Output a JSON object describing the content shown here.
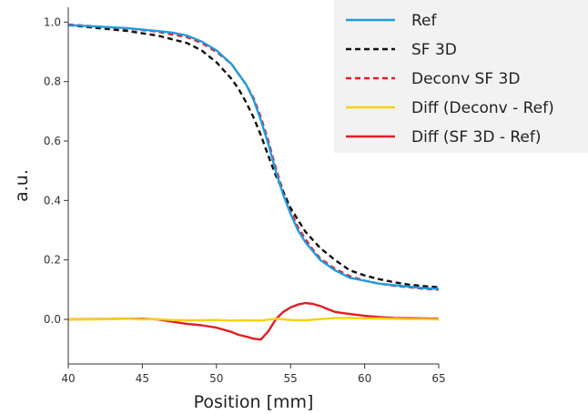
{
  "chart_data": {
    "type": "line",
    "xlabel": "Position [mm]",
    "ylabel": "a.u.",
    "xlim": [
      40,
      65
    ],
    "ylim": [
      -0.15,
      1.05
    ],
    "xticks": [
      40,
      45,
      50,
      55,
      60,
      65
    ],
    "yticks": [
      0.0,
      0.2,
      0.4,
      0.6,
      0.8,
      1.0
    ],
    "xtick_labels": [
      "40",
      "45",
      "50",
      "55",
      "60",
      "65"
    ],
    "ytick_labels": [
      "0.0",
      "0.2",
      "0.4",
      "0.6",
      "0.8",
      "1.0"
    ],
    "grid": false,
    "legend_position": "top-right",
    "series": [
      {
        "name": "Ref",
        "color": "#1f9bde",
        "dash": "solid",
        "x": [
          40,
          42,
          44,
          46,
          47,
          48,
          49,
          50,
          51,
          52,
          52.5,
          53,
          53.5,
          54,
          54.5,
          55,
          55.5,
          56,
          56.5,
          57,
          58,
          59,
          60,
          61,
          62,
          63,
          64,
          65
        ],
        "y": [
          0.99,
          0.985,
          0.98,
          0.97,
          0.965,
          0.955,
          0.935,
          0.905,
          0.86,
          0.79,
          0.74,
          0.67,
          0.59,
          0.5,
          0.42,
          0.355,
          0.3,
          0.26,
          0.23,
          0.2,
          0.165,
          0.14,
          0.13,
          0.12,
          0.115,
          0.11,
          0.105,
          0.103
        ]
      },
      {
        "name": "SF 3D",
        "color": "#111111",
        "dash": "dashed",
        "x": [
          40,
          42,
          44,
          46,
          48,
          49,
          50,
          51,
          51.5,
          52,
          52.5,
          53,
          53.5,
          54,
          54.5,
          55,
          55.5,
          56,
          57,
          58,
          59,
          60,
          61,
          62,
          63,
          64,
          65
        ],
        "y": [
          0.99,
          0.98,
          0.97,
          0.955,
          0.93,
          0.905,
          0.865,
          0.81,
          0.775,
          0.73,
          0.68,
          0.62,
          0.55,
          0.485,
          0.43,
          0.375,
          0.335,
          0.295,
          0.24,
          0.2,
          0.165,
          0.148,
          0.135,
          0.125,
          0.117,
          0.112,
          0.108
        ]
      },
      {
        "name": "Deconv SF 3D",
        "color": "#e01e26",
        "dash": "dashed",
        "x": [
          40,
          42,
          44,
          46,
          48,
          49,
          50,
          51,
          52,
          52.5,
          53,
          53.5,
          54,
          54.5,
          55,
          55.5,
          56,
          56.5,
          57,
          58,
          59,
          60,
          61,
          62,
          63,
          64,
          65
        ],
        "y": [
          0.992,
          0.985,
          0.978,
          0.968,
          0.95,
          0.93,
          0.9,
          0.86,
          0.79,
          0.745,
          0.68,
          0.6,
          0.51,
          0.43,
          0.365,
          0.31,
          0.27,
          0.235,
          0.205,
          0.17,
          0.145,
          0.13,
          0.12,
          0.113,
          0.108,
          0.103,
          0.1
        ]
      },
      {
        "name": "Diff (Deconv - Ref)",
        "color": "#f5d30a",
        "dash": "solid",
        "x": [
          40,
          42,
          44,
          45,
          46,
          47,
          48,
          49,
          50,
          51,
          52,
          53,
          54,
          55,
          56,
          57,
          58,
          59,
          60,
          61,
          62,
          63,
          64,
          65
        ],
        "y": [
          0.0,
          0.0,
          0.002,
          0.0,
          0.001,
          -0.002,
          -0.003,
          -0.003,
          -0.002,
          -0.004,
          -0.003,
          -0.004,
          0.002,
          -0.002,
          -0.003,
          0.001,
          0.004,
          0.005,
          0.003,
          0.003,
          0.002,
          0.001,
          0.001,
          0.0
        ]
      },
      {
        "name": "Diff (SF 3D - Ref)",
        "color": "#e01e26",
        "dash": "solid",
        "x": [
          40,
          42,
          44,
          45,
          46,
          47,
          48,
          49,
          50,
          51,
          51.5,
          52,
          52.5,
          53,
          53.5,
          54,
          54.5,
          55,
          55.5,
          56,
          56.5,
          57,
          57.5,
          58,
          59,
          60,
          61,
          62,
          63,
          64,
          65
        ],
        "y": [
          0.0,
          0.001,
          0.002,
          0.002,
          0.0,
          -0.008,
          -0.015,
          -0.02,
          -0.028,
          -0.042,
          -0.052,
          -0.058,
          -0.065,
          -0.068,
          -0.04,
          0.0,
          0.025,
          0.04,
          0.05,
          0.055,
          0.052,
          0.045,
          0.035,
          0.025,
          0.018,
          0.012,
          0.008,
          0.005,
          0.004,
          0.003,
          0.002
        ]
      }
    ]
  }
}
